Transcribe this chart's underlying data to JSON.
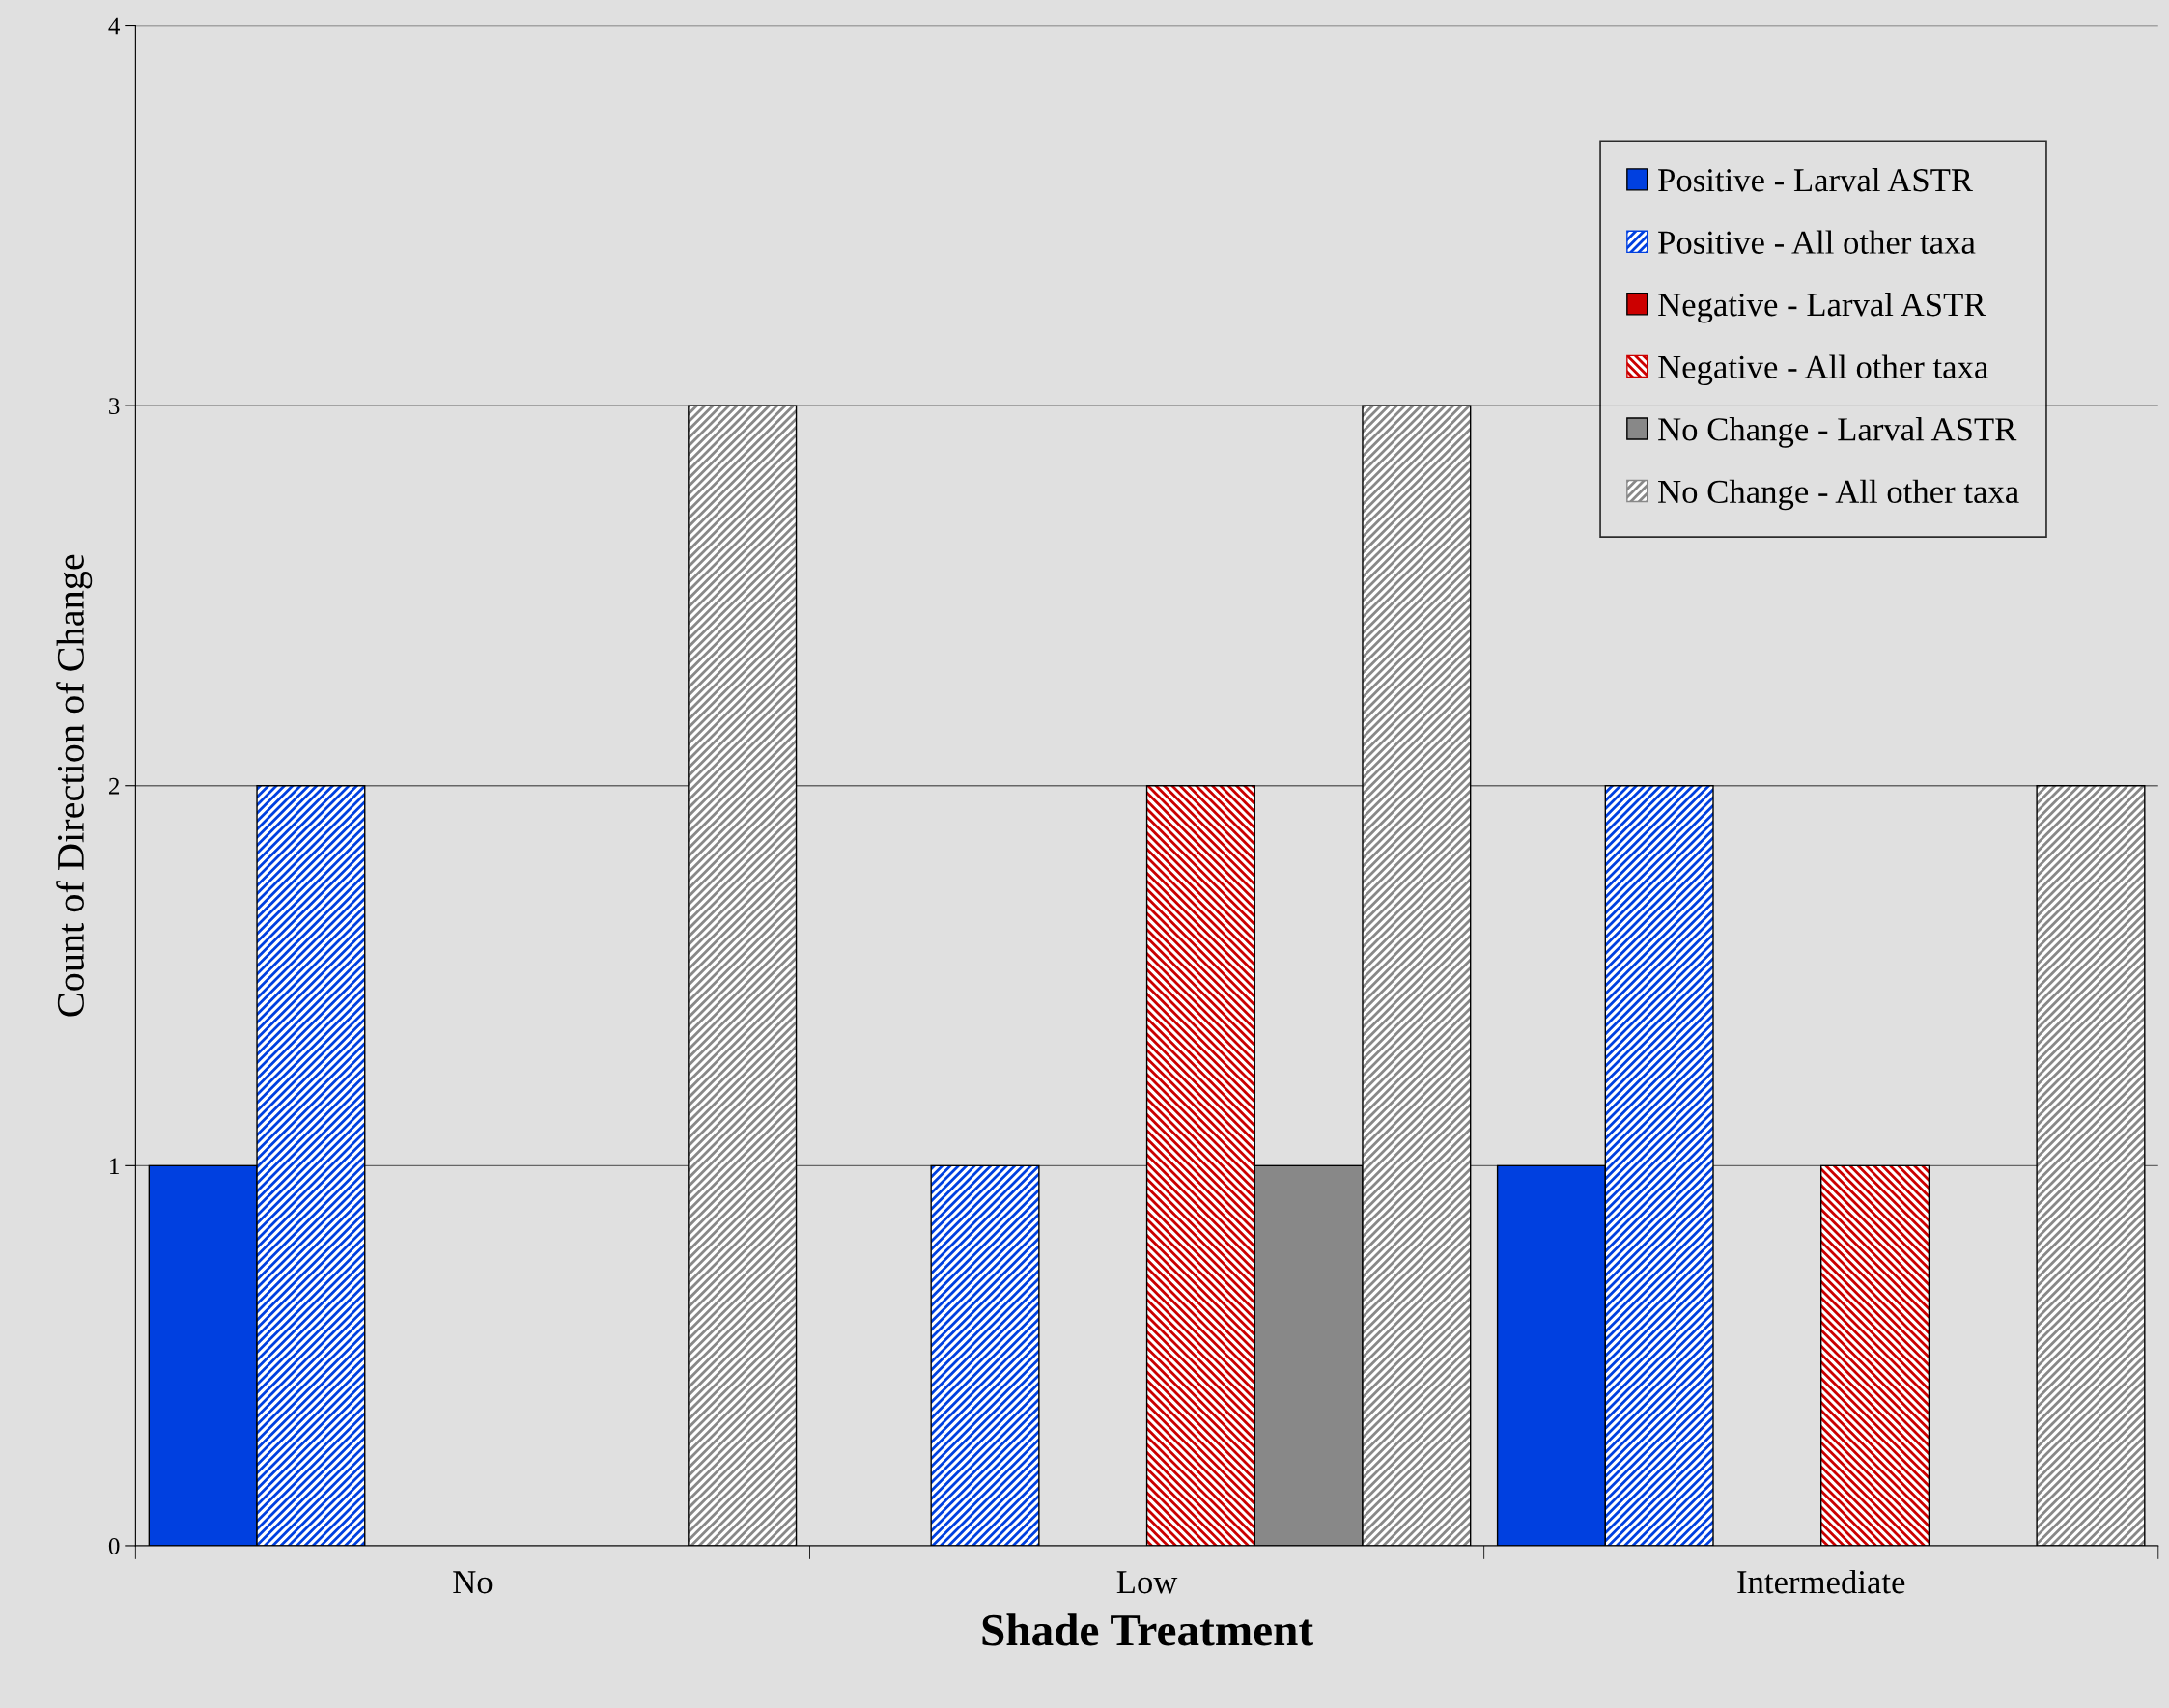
{
  "chart_data": {
    "type": "bar",
    "xlabel": "Shade Treatment",
    "ylabel": "Count of Direction of Change",
    "categories": [
      "No",
      "Low",
      "Intermediate"
    ],
    "series": [
      {
        "name": "Positive - Larval ASTR",
        "color": "#0040e0",
        "values": [
          1,
          0,
          1
        ]
      },
      {
        "name": "Positive - All other taxa",
        "color": "#0040e0",
        "values": [
          2,
          1,
          2
        ]
      },
      {
        "name": "Negative - Larval ASTR",
        "color": "#cc0000",
        "values": [
          0,
          0,
          0
        ]
      },
      {
        "name": "Negative - All other taxa",
        "color": "#cc0000",
        "values": [
          0,
          2,
          1
        ]
      },
      {
        "name": "No Change - Larval ASTR",
        "color": "#888888",
        "values": [
          0,
          1,
          0
        ]
      },
      {
        "name": "No Change - All other taxa",
        "color": "#888888",
        "values": [
          3,
          3,
          2
        ]
      }
    ],
    "ylim": [
      0,
      4
    ],
    "yticks": [
      0,
      1,
      2,
      3,
      4
    ],
    "grid": "y",
    "legend": "top right"
  }
}
